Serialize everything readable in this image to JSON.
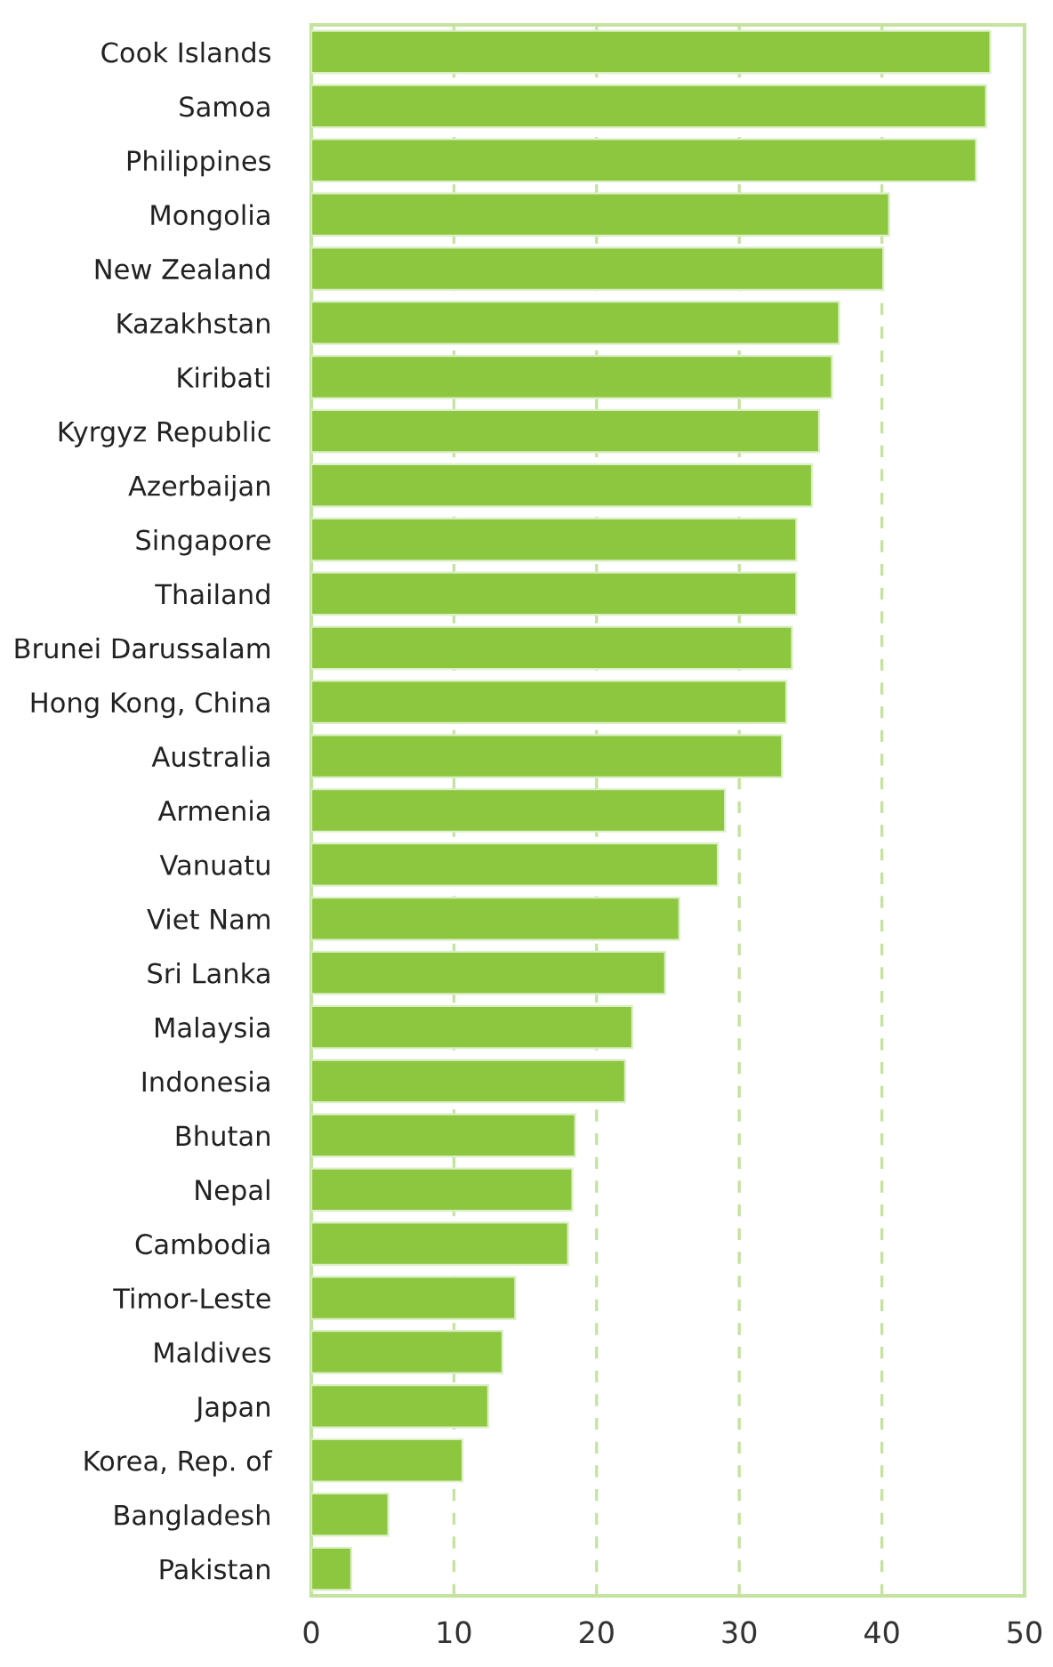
{
  "chart_data": {
    "type": "bar",
    "orientation": "horizontal",
    "categories": [
      "Cook Islands",
      "Samoa",
      "Philippines",
      "Mongolia",
      "New Zealand",
      "Kazakhstan",
      "Kiribati",
      "Kyrgyz Republic",
      "Azerbaijan",
      "Singapore",
      "Thailand",
      "Brunei Darussalam",
      "Hong Kong, China",
      "Australia",
      "Armenia",
      "Vanuatu",
      "Viet Nam",
      "Sri Lanka",
      "Malaysia",
      "Indonesia",
      "Bhutan",
      "Nepal",
      "Cambodia",
      "Timor-Leste",
      "Maldives",
      "Japan",
      "Korea, Rep. of",
      "Bangladesh",
      "Pakistan"
    ],
    "values": [
      47.6,
      47.3,
      46.6,
      40.5,
      40.1,
      37.0,
      36.5,
      35.6,
      35.1,
      34.0,
      34.0,
      33.7,
      33.3,
      33.0,
      29.0,
      28.5,
      25.8,
      24.8,
      22.5,
      22.0,
      18.5,
      18.3,
      18.0,
      14.3,
      13.4,
      12.4,
      10.6,
      5.4,
      2.8
    ],
    "color": "#8dc63f",
    "xlim": [
      0,
      50
    ],
    "xticks": [
      0,
      10,
      20,
      30,
      40,
      50
    ],
    "grid": "x",
    "line_style": "dashed"
  }
}
